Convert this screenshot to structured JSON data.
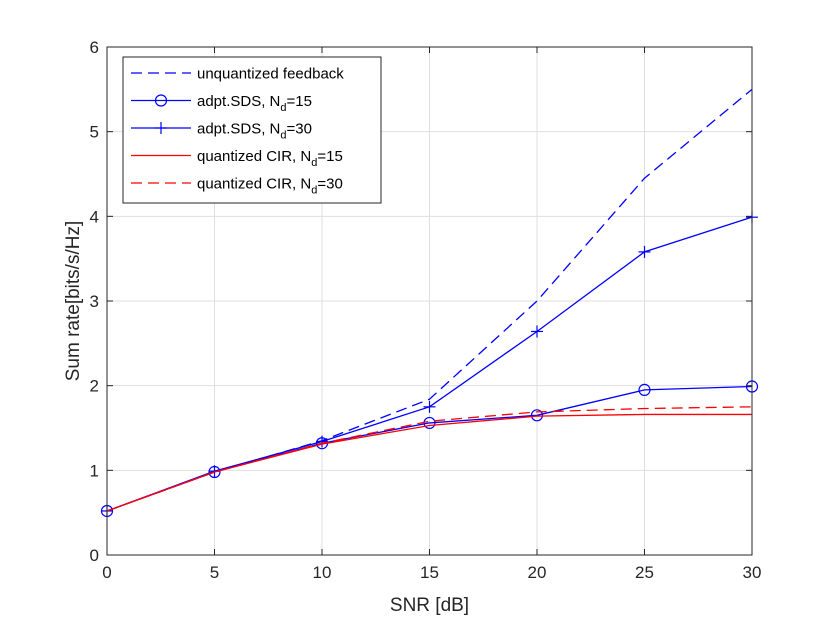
{
  "chart_data": {
    "type": "line",
    "title": "",
    "xlabel": "SNR [dB]",
    "ylabel": "Sum rate[bits/s/Hz]",
    "xlim": [
      0,
      30
    ],
    "ylim": [
      0,
      6
    ],
    "xticks": [
      "0",
      "5",
      "10",
      "15",
      "20",
      "25",
      "30"
    ],
    "yticks": [
      "0",
      "1",
      "2",
      "3",
      "4",
      "5",
      "6"
    ],
    "grid": true,
    "legend_position": "top-left",
    "x": [
      0,
      5,
      10,
      15,
      20,
      25,
      30
    ],
    "series": [
      {
        "name": "unquantized feedback",
        "label_main": "unquantized feedback",
        "label_sub": "",
        "label_tail": "",
        "color": "#0000ff",
        "dash": "dashed",
        "marker": "none",
        "values": [
          0.52,
          0.98,
          1.35,
          1.84,
          3.0,
          4.45,
          5.5
        ]
      },
      {
        "name": "adpt.SDS, N_d=15",
        "label_main": "adpt.SDS, N",
        "label_sub": "d",
        "label_tail": "=15",
        "color": "#0000ff",
        "dash": "solid",
        "marker": "circle",
        "values": [
          0.52,
          0.98,
          1.32,
          1.56,
          1.65,
          1.95,
          1.99
        ]
      },
      {
        "name": "adpt.SDS, N_d=30",
        "label_main": "adpt.SDS, N",
        "label_sub": "d",
        "label_tail": "=30",
        "color": "#0000ff",
        "dash": "solid",
        "marker": "plus",
        "values": [
          0.52,
          0.99,
          1.34,
          1.75,
          2.64,
          3.58,
          3.99
        ]
      },
      {
        "name": "quantized CIR, N_d=15",
        "label_main": "quantized CIR, N",
        "label_sub": "d",
        "label_tail": "=15",
        "color": "#ff0000",
        "dash": "solid",
        "marker": "none",
        "values": [
          0.52,
          0.98,
          1.31,
          1.53,
          1.64,
          1.66,
          1.66
        ]
      },
      {
        "name": "quantized CIR, N_d=30",
        "label_main": "quantized CIR, N",
        "label_sub": "d",
        "label_tail": "=30",
        "color": "#ff0000",
        "dash": "dashed",
        "marker": "none",
        "values": [
          0.52,
          0.98,
          1.32,
          1.58,
          1.69,
          1.73,
          1.75
        ]
      }
    ]
  }
}
